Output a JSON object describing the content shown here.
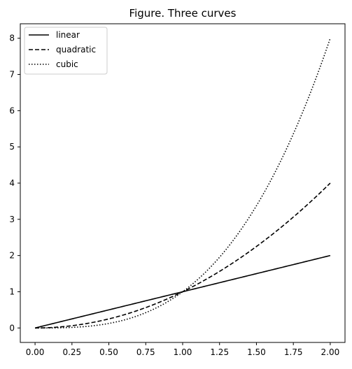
{
  "chart_data": {
    "type": "line",
    "title": "Figure. Three curves",
    "xlabel": "",
    "ylabel": "",
    "xlim": [
      -0.1,
      2.1
    ],
    "ylim": [
      -0.4,
      8.4
    ],
    "xticks": [
      0,
      0.25,
      0.5,
      0.75,
      1,
      1.25,
      1.5,
      1.75,
      2
    ],
    "xtick_labels": [
      "0.00",
      "0.25",
      "0.50",
      "0.75",
      "1.00",
      "1.25",
      "1.50",
      "1.75",
      "2.00"
    ],
    "yticks": [
      0,
      1,
      2,
      3,
      4,
      5,
      6,
      7,
      8
    ],
    "ytick_labels": [
      "0",
      "1",
      "2",
      "3",
      "4",
      "5",
      "6",
      "7",
      "8"
    ],
    "grid": false,
    "legend_position": "top-left",
    "series": [
      {
        "name": "linear",
        "style": "solid",
        "color": "#000000",
        "x": [
          0,
          0.25,
          0.5,
          0.75,
          1,
          1.25,
          1.5,
          1.75,
          2
        ],
        "y": [
          0,
          0.25,
          0.5,
          0.75,
          1,
          1.25,
          1.5,
          1.75,
          2
        ]
      },
      {
        "name": "quadratic",
        "style": "dashed",
        "color": "#000000",
        "x": [
          0,
          0.25,
          0.5,
          0.75,
          1,
          1.25,
          1.5,
          1.75,
          2
        ],
        "y": [
          0,
          0.0625,
          0.25,
          0.5625,
          1,
          1.5625,
          2.25,
          3.0625,
          4
        ]
      },
      {
        "name": "cubic",
        "style": "dotted",
        "color": "#000000",
        "x": [
          0,
          0.25,
          0.5,
          0.75,
          1,
          1.25,
          1.5,
          1.75,
          2
        ],
        "y": [
          0,
          0.015625,
          0.125,
          0.421875,
          1,
          1.953125,
          3.375,
          5.359375,
          8
        ]
      }
    ]
  }
}
